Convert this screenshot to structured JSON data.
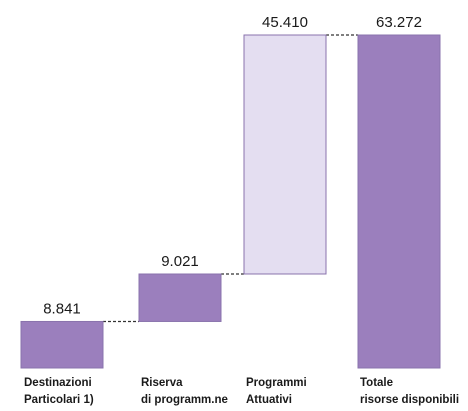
{
  "chart_data": {
    "type": "waterfall",
    "title": "",
    "xlabel": "",
    "ylabel": "",
    "categories": [
      [
        "Destinazioni",
        "Particolari 1)"
      ],
      [
        "Riserva",
        "di programm.ne"
      ],
      [
        "Programmi",
        "Attuativi"
      ],
      [
        "Totale",
        "risorse disponibili"
      ]
    ],
    "values": [
      8.841,
      9.021,
      45.41,
      63.272
    ],
    "value_labels": [
      "8.841",
      "9.021",
      "45.410",
      "63.272"
    ],
    "steps": [
      {
        "kind": "increment",
        "start": 0,
        "end": 8.841
      },
      {
        "kind": "increment",
        "start": 8.841,
        "end": 17.862
      },
      {
        "kind": "increment",
        "start": 17.862,
        "end": 63.272
      },
      {
        "kind": "total",
        "start": 0,
        "end": 63.272
      }
    ],
    "ylim": [
      0,
      63.272
    ],
    "grid": false,
    "legend": "none",
    "colors": {
      "increment_dark": "#9b7fbd",
      "increment_light": "#e4def1",
      "total": "#9b7fbd",
      "bar_border": "#8a73ad",
      "connector": "#333333"
    },
    "bar_fill_roles": [
      "increment_dark",
      "increment_dark",
      "increment_light",
      "total"
    ]
  }
}
